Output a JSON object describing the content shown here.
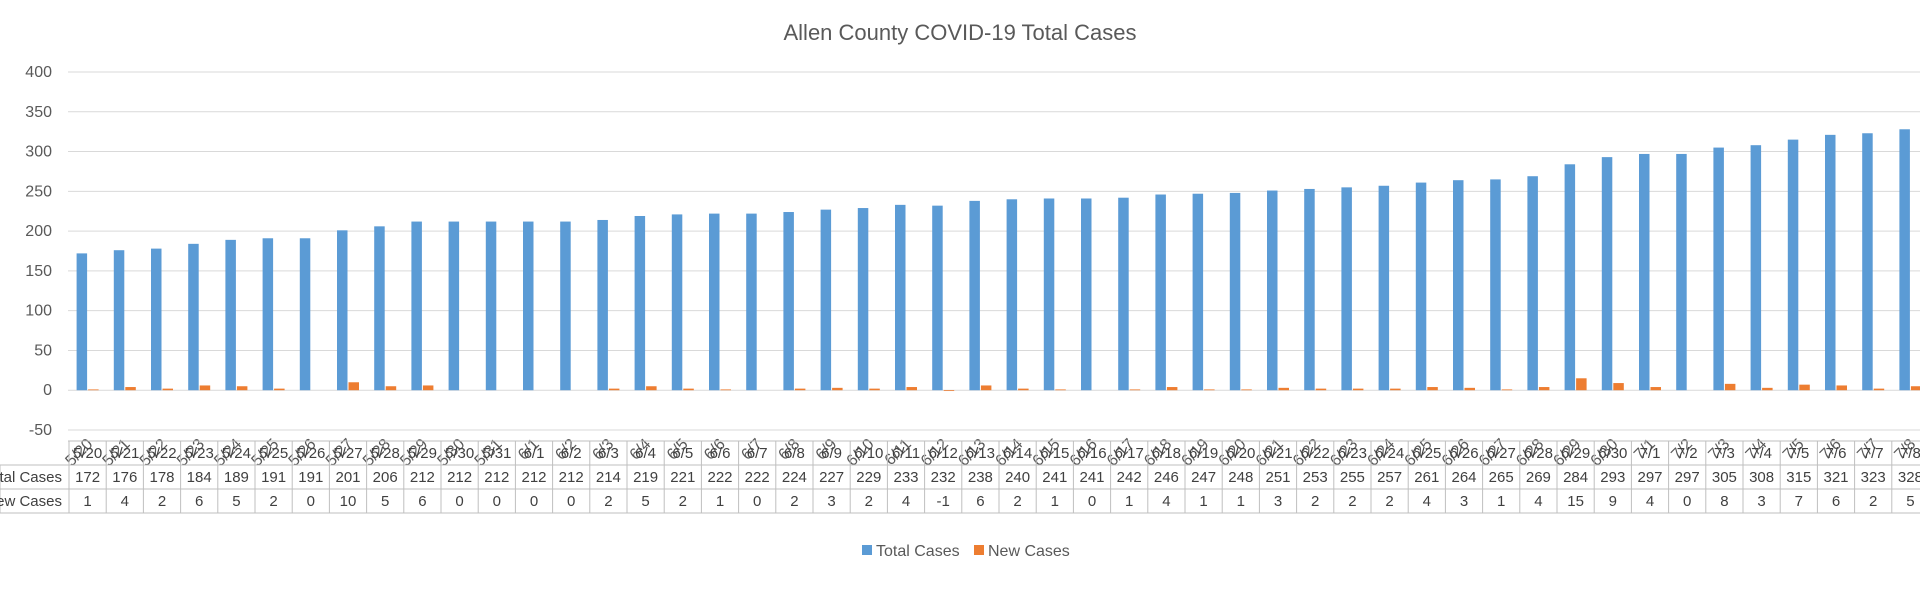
{
  "chart_data": {
    "type": "bar",
    "title": "Allen County COVID-19 Total Cases",
    "ylim": [
      -50,
      400
    ],
    "yticks": [
      -50,
      0,
      50,
      100,
      150,
      200,
      250,
      300,
      350,
      400
    ],
    "grid": true,
    "legend_position": "bottom",
    "has_data_table": true,
    "categories": [
      "5/20",
      "5/21",
      "5/22",
      "5/23",
      "5/24",
      "5/25",
      "5/26",
      "5/27",
      "5/28",
      "5/29",
      "5/30",
      "5/31",
      "6/1",
      "6/2",
      "6/3",
      "6/4",
      "6/5",
      "6/6",
      "6/7",
      "6/8",
      "6/9",
      "6/10",
      "6/11",
      "6/12",
      "6/13",
      "6/14",
      "6/15",
      "6/16",
      "6/17",
      "6/18",
      "6/19",
      "6/20",
      "6/21",
      "6/22",
      "6/23",
      "6/24",
      "6/25",
      "6/26",
      "6/27",
      "6/28",
      "6/29",
      "6/30",
      "7/1",
      "7/2",
      "7/3",
      "7/4",
      "7/5",
      "7/6",
      "7/7",
      "7/8"
    ],
    "series": [
      {
        "name": "Total Cases",
        "table_label": "Total Cases",
        "color": "#5B9BD5",
        "values": [
          172,
          176,
          178,
          184,
          189,
          191,
          191,
          201,
          206,
          212,
          212,
          212,
          212,
          212,
          214,
          219,
          221,
          222,
          222,
          224,
          227,
          229,
          233,
          232,
          238,
          240,
          241,
          241,
          242,
          246,
          247,
          248,
          251,
          253,
          255,
          257,
          261,
          264,
          265,
          269,
          284,
          293,
          297,
          297,
          305,
          308,
          315,
          321,
          323,
          328
        ]
      },
      {
        "name": "New Cases",
        "table_label": "New Cases",
        "color": "#ED7D31",
        "values": [
          1,
          4,
          2,
          6,
          5,
          2,
          0,
          10,
          5,
          6,
          0,
          0,
          0,
          0,
          2,
          5,
          2,
          1,
          0,
          2,
          3,
          2,
          4,
          -1,
          6,
          2,
          1,
          0,
          1,
          4,
          1,
          1,
          3,
          2,
          2,
          2,
          4,
          3,
          1,
          4,
          15,
          9,
          4,
          0,
          8,
          3,
          7,
          6,
          2,
          5
        ]
      }
    ]
  }
}
